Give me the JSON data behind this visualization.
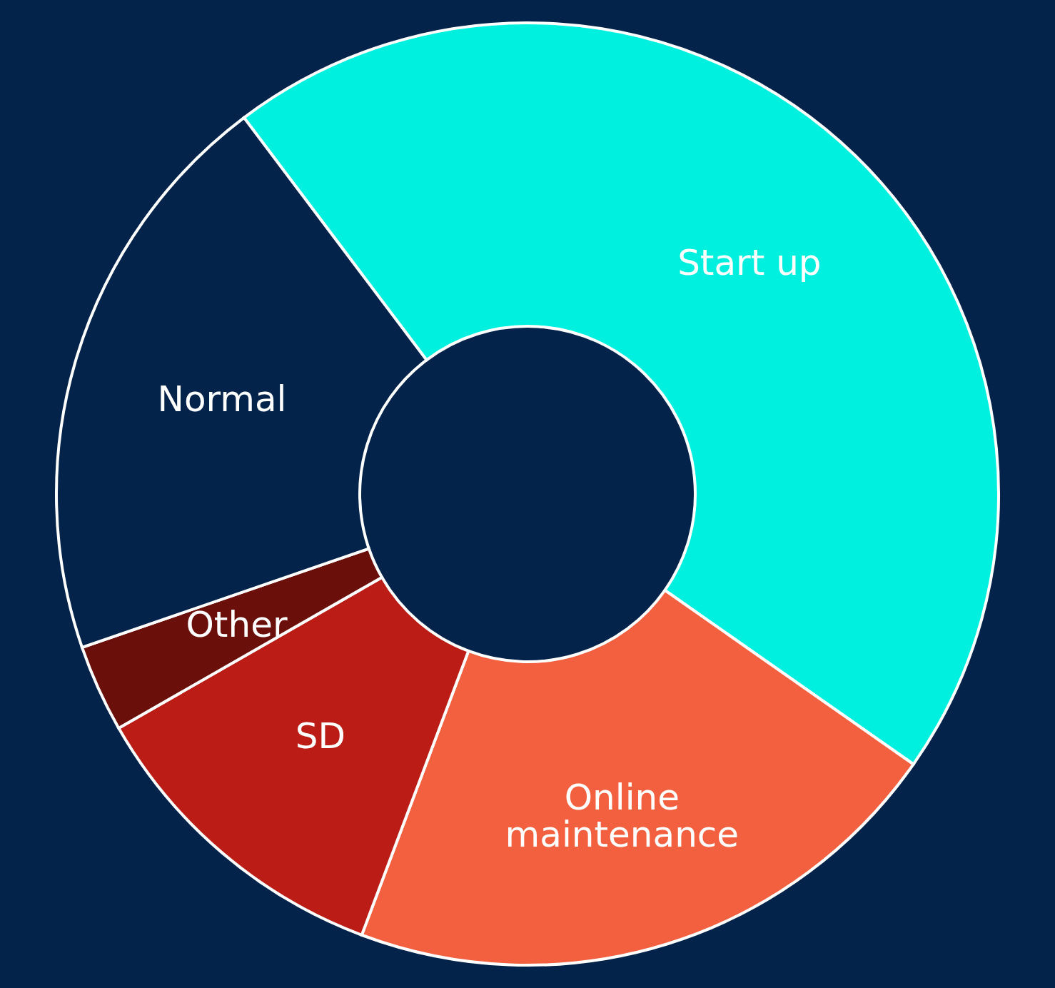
{
  "chart_data": {
    "type": "donut",
    "categories": [
      "Start up",
      "Online\nmaintenance",
      "SD",
      "Other",
      "Normal"
    ],
    "values": [
      45,
      21,
      11,
      3,
      20
    ],
    "colors": [
      "#00f0e0",
      "#f2603f",
      "#bb1c16",
      "#6b0f0b",
      "#03234a"
    ]
  }
}
